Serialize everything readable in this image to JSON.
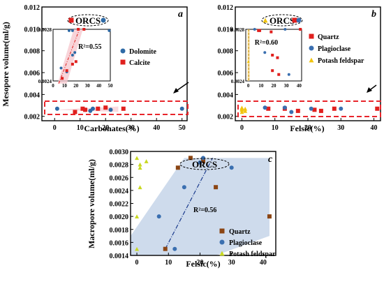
{
  "colors": {
    "dolomite": "#2e6aa6",
    "calcite": "#e0201e",
    "quartz": "#e0201e",
    "quartz_c": "#8b4513",
    "plagioclase": "#3a6fb0",
    "potash": "#f1c40f",
    "potash_c": "#c8d820",
    "band": "#e8252b",
    "shade_a": "#f6c9d0",
    "shade_c": "#c9d7ea",
    "trend_c": "#1a3a8c"
  },
  "chart_data": [
    {
      "id": "a",
      "type": "scatter",
      "panel_label": "a",
      "ylabel": "Mesopore volume(ml/g)",
      "xlabel": "Carbonates(%)",
      "xlim": [
        -5,
        52
      ],
      "ylim": [
        0.0016,
        0.012
      ],
      "xticks": [
        "0",
        "10",
        "20",
        "30",
        "40",
        "50"
      ],
      "yticks": [
        "0.002",
        "0.004",
        "0.006",
        "0.008",
        "0.010",
        "0.012"
      ],
      "orcs_label": "ORCS",
      "series": [
        {
          "name": "Dolomite",
          "marker": "circle",
          "color_key": "dolomite",
          "x": [
            1,
            12,
            14,
            15,
            22,
            50
          ],
          "y": [
            0.0027,
            0.0026,
            0.0025,
            0.0027,
            0.0026,
            0.0027
          ]
        },
        {
          "name": "Calcite",
          "marker": "square",
          "color_key": "calcite",
          "x": [
            8,
            11,
            12,
            17,
            20,
            27
          ],
          "y": [
            0.0024,
            0.0027,
            0.0026,
            0.0027,
            0.0028,
            0.0027
          ]
        }
      ],
      "orcs_points": [
        {
          "marker": "square",
          "color_key": "calcite"
        },
        {
          "marker": "circle",
          "color_key": "dolomite"
        }
      ],
      "inset": {
        "xlim": [
          0,
          50
        ],
        "ylim": [
          0.0024,
          0.0028
        ],
        "xticks": [
          "0",
          "10",
          "20",
          "30",
          "40",
          "50"
        ],
        "yticks": [
          "0.0024",
          "0.0028"
        ],
        "r2": "R²=0.55",
        "points": [
          {
            "x": 14,
            "y": 0.00279,
            "s": "dolomite"
          },
          {
            "x": 17,
            "y": 0.00279,
            "s": "dolomite"
          },
          {
            "x": 49,
            "y": 0.00279,
            "s": "dolomite"
          },
          {
            "x": 7,
            "y": 0.0025,
            "s": "dolomite"
          },
          {
            "x": 17,
            "y": 0.0026,
            "s": "dolomite"
          },
          {
            "x": 19,
            "y": 0.00262,
            "s": "dolomite"
          },
          {
            "x": 12,
            "y": 0.00247,
            "s": "dolomite"
          },
          {
            "x": 22,
            "y": 0.0028,
            "s": "calcite"
          },
          {
            "x": 27,
            "y": 0.0028,
            "s": "calcite"
          },
          {
            "x": 20,
            "y": 0.00255,
            "s": "calcite"
          },
          {
            "x": 17,
            "y": 0.00253,
            "s": "calcite"
          },
          {
            "x": 12,
            "y": 0.00248,
            "s": "calcite"
          },
          {
            "x": 8,
            "y": 0.00242,
            "s": "calcite"
          }
        ]
      }
    },
    {
      "id": "b",
      "type": "scatter",
      "panel_label": "b",
      "ylabel": "",
      "xlabel": "Felsic(%)",
      "xlim": [
        -2,
        42
      ],
      "ylim": [
        0.0016,
        0.012
      ],
      "xticks": [
        "0",
        "10",
        "20",
        "30",
        "40"
      ],
      "yticks": [
        "0.002",
        "0.004",
        "0.006",
        "0.008",
        "0.010",
        "0.012"
      ],
      "orcs_label": "ORCS",
      "series": [
        {
          "name": "Quartz",
          "marker": "square",
          "color_key": "quartz",
          "x": [
            8,
            13,
            17,
            22,
            24,
            28,
            41
          ],
          "y": [
            0.0027,
            0.0027,
            0.0025,
            0.0026,
            0.0025,
            0.0027,
            0.0027
          ]
        },
        {
          "name": "Plagioclase",
          "marker": "circle",
          "color_key": "plagioclase",
          "x": [
            7,
            13,
            15,
            21,
            30
          ],
          "y": [
            0.0028,
            0.0028,
            0.0024,
            0.0027,
            0.0027
          ]
        },
        {
          "name": "Potash feldspar",
          "marker": "triangle",
          "color_key": "potash",
          "x": [
            0,
            0,
            0,
            0,
            1,
            1
          ],
          "y": [
            0.0024,
            0.0026,
            0.0027,
            0.0028,
            0.0025,
            0.0027
          ]
        }
      ],
      "orcs_points": [
        {
          "marker": "triangle",
          "color_key": "potash"
        },
        {
          "marker": "square",
          "color_key": "quartz"
        },
        {
          "marker": "circle",
          "color_key": "plagioclase"
        }
      ],
      "inset": {
        "xlim": [
          -2,
          42
        ],
        "ylim": [
          0.0024,
          0.0028
        ],
        "xticks": [
          "0",
          "10",
          "20",
          "30",
          "40"
        ],
        "yticks": [
          "0.0024",
          "0.0028"
        ],
        "r2": "R²=0.60",
        "points": [
          {
            "x": 5,
            "y": 0.0028,
            "s": "plagioclase"
          },
          {
            "x": 8,
            "y": 0.00279,
            "s": "quartz"
          },
          {
            "x": 9,
            "y": 0.00279,
            "s": "quartz"
          },
          {
            "x": 18,
            "y": 0.00278,
            "s": "quartz"
          },
          {
            "x": 29,
            "y": 0.0028,
            "s": "plagioclase"
          },
          {
            "x": 41,
            "y": 0.0028,
            "s": "quartz"
          },
          {
            "x": 13,
            "y": 0.00262,
            "s": "plagioclase"
          },
          {
            "x": 19,
            "y": 0.0026,
            "s": "quartz"
          },
          {
            "x": 23,
            "y": 0.00258,
            "s": "quartz"
          },
          {
            "x": 19,
            "y": 0.00248,
            "s": "quartz"
          },
          {
            "x": 24,
            "y": 0.00245,
            "s": "quartz"
          },
          {
            "x": 32,
            "y": 0.00245,
            "s": "plagioclase"
          },
          {
            "x": 0,
            "y": 0.00255,
            "s": "potash"
          }
        ]
      },
      "legend": [
        "Quartz",
        "Plagioclase",
        "Potash feldspar"
      ]
    },
    {
      "id": "c",
      "type": "scatter",
      "panel_label": "c",
      "ylabel": "Macropore volume(ml/g)",
      "xlabel": "Felsic(%)",
      "xlim": [
        -2,
        44
      ],
      "ylim": [
        0.0014,
        0.003
      ],
      "xticks": [
        "0",
        "10",
        "20",
        "30",
        "40"
      ],
      "yticks": [
        "0.0014",
        "0.0016",
        "0.0018",
        "0.0020",
        "0.0022",
        "0.0024",
        "0.0026",
        "0.0028",
        "0.0030"
      ],
      "orcs_label": "ORCS",
      "r2": "R²=0.56",
      "series": [
        {
          "name": "Quartz",
          "marker": "square",
          "color_key": "quartz_c",
          "x": [
            9,
            13,
            17,
            21,
            25,
            42
          ],
          "y": [
            0.0015,
            0.00275,
            0.0029,
            0.00285,
            0.00245,
            0.002
          ]
        },
        {
          "name": "Plagioclase",
          "marker": "circle",
          "color_key": "plagioclase",
          "x": [
            7,
            12,
            15,
            20,
            21,
            30
          ],
          "y": [
            0.002,
            0.0015,
            0.00245,
            0.00283,
            0.0029,
            0.00275
          ]
        },
        {
          "name": "Potash feldspar",
          "marker": "triangle",
          "color_key": "potash_c",
          "x": [
            0,
            0,
            1,
            1,
            1,
            0,
            3
          ],
          "y": [
            0.0015,
            0.002,
            0.00245,
            0.00275,
            0.0028,
            0.0029,
            0.00285
          ]
        }
      ],
      "legend": [
        "Quartz",
        "Plagioclase",
        "Potash feldspar"
      ]
    }
  ]
}
